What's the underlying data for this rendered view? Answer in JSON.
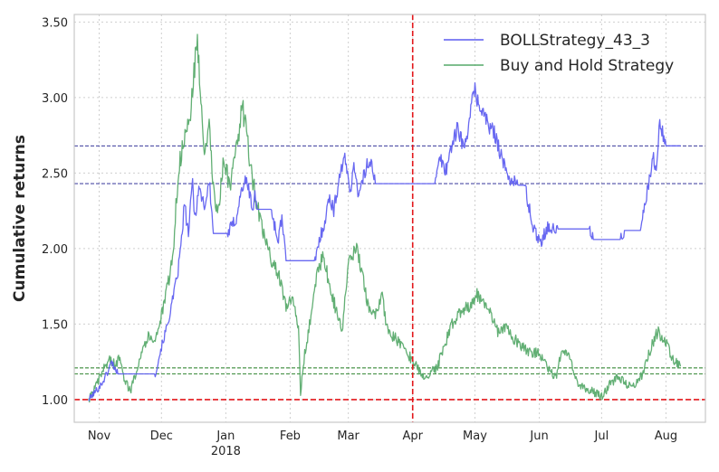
{
  "chart_data": {
    "type": "line",
    "ylabel": "Cumulative returns",
    "xlabel": "",
    "ylim": [
      0.85,
      3.55
    ],
    "xlim": [
      "2017-10-20",
      "2018-08-20"
    ],
    "grid": true,
    "legend_position": "top-right",
    "y_ticks": [
      {
        "value": 1.0,
        "label": "1.00"
      },
      {
        "value": 1.5,
        "label": "1.50"
      },
      {
        "value": 2.0,
        "label": "2.00"
      },
      {
        "value": 2.5,
        "label": "2.50"
      },
      {
        "value": 3.0,
        "label": "3.00"
      },
      {
        "value": 3.5,
        "label": "3.50"
      }
    ],
    "x_ticks": [
      {
        "date": "2017-11-01",
        "label": "Nov",
        "sublabel": ""
      },
      {
        "date": "2017-12-01",
        "label": "Dec",
        "sublabel": ""
      },
      {
        "date": "2018-01-01",
        "label": "Jan",
        "sublabel": "2018"
      },
      {
        "date": "2018-02-01",
        "label": "Feb",
        "sublabel": ""
      },
      {
        "date": "2018-03-01",
        "label": "Mar",
        "sublabel": ""
      },
      {
        "date": "2018-04-01",
        "label": "Apr",
        "sublabel": ""
      },
      {
        "date": "2018-05-01",
        "label": "May",
        "sublabel": ""
      },
      {
        "date": "2018-06-01",
        "label": "Jun",
        "sublabel": ""
      },
      {
        "date": "2018-07-01",
        "label": "Jul",
        "sublabel": ""
      },
      {
        "date": "2018-08-01",
        "label": "Aug",
        "sublabel": ""
      }
    ],
    "series": [
      {
        "name": "BOLLStrategy_43_3",
        "color": "#5b5bf0",
        "x": [
          "2017-10-27",
          "2017-10-30",
          "2017-11-02",
          "2017-11-05",
          "2017-11-07",
          "2017-11-10",
          "2017-11-20",
          "2017-11-28",
          "2017-12-01",
          "2017-12-04",
          "2017-12-07",
          "2017-12-09",
          "2017-12-11",
          "2017-12-12",
          "2017-12-14",
          "2017-12-16",
          "2017-12-17",
          "2017-12-19",
          "2017-12-22",
          "2017-12-24",
          "2017-12-26",
          "2017-12-31",
          "2018-01-02",
          "2018-01-04",
          "2018-01-06",
          "2018-01-08",
          "2018-01-10",
          "2018-01-12",
          "2018-01-14",
          "2018-01-15",
          "2018-01-16",
          "2018-01-20",
          "2018-01-23",
          "2018-01-26",
          "2018-01-28",
          "2018-01-30",
          "2018-02-05",
          "2018-02-10",
          "2018-02-13",
          "2018-02-15",
          "2018-02-18",
          "2018-02-20",
          "2018-02-22",
          "2018-02-25",
          "2018-02-27",
          "2018-03-02",
          "2018-03-04",
          "2018-03-06",
          "2018-03-08",
          "2018-03-10",
          "2018-03-12",
          "2018-03-14",
          "2018-04-01",
          "2018-04-12",
          "2018-04-14",
          "2018-04-17",
          "2018-04-20",
          "2018-04-23",
          "2018-04-26",
          "2018-04-28",
          "2018-05-01",
          "2018-05-03",
          "2018-05-05",
          "2018-05-08",
          "2018-05-11",
          "2018-05-14",
          "2018-05-16",
          "2018-05-19",
          "2018-05-22",
          "2018-05-25",
          "2018-05-28",
          "2018-05-30",
          "2018-06-02",
          "2018-06-05",
          "2018-06-08",
          "2018-06-10",
          "2018-06-25",
          "2018-06-27",
          "2018-06-30",
          "2018-07-10",
          "2018-07-12",
          "2018-07-20",
          "2018-07-22",
          "2018-07-24",
          "2018-07-26",
          "2018-07-27",
          "2018-07-29",
          "2018-08-01",
          "2018-08-08"
        ],
        "values": [
          1.0,
          1.05,
          1.1,
          1.18,
          1.25,
          1.17,
          1.17,
          1.17,
          1.35,
          1.5,
          1.7,
          1.85,
          2.1,
          2.3,
          2.1,
          2.45,
          2.2,
          2.4,
          2.28,
          2.45,
          2.1,
          2.1,
          2.1,
          2.15,
          2.2,
          2.35,
          2.45,
          2.4,
          2.25,
          2.35,
          2.26,
          2.26,
          2.26,
          2.05,
          2.2,
          1.92,
          1.92,
          1.92,
          1.92,
          2.05,
          2.2,
          2.35,
          2.25,
          2.5,
          2.6,
          2.4,
          2.55,
          2.35,
          2.45,
          2.55,
          2.6,
          2.43,
          2.43,
          2.43,
          2.6,
          2.52,
          2.7,
          2.8,
          2.65,
          2.85,
          3.05,
          2.95,
          2.9,
          2.8,
          2.75,
          2.6,
          2.5,
          2.45,
          2.42,
          2.42,
          2.2,
          2.1,
          2.05,
          2.15,
          2.12,
          2.13,
          2.13,
          2.06,
          2.06,
          2.06,
          2.12,
          2.12,
          2.3,
          2.45,
          2.6,
          2.5,
          2.82,
          2.68,
          2.68
        ]
      },
      {
        "name": "Buy and Hold Strategy",
        "color": "#55a868",
        "x": [
          "2017-10-27",
          "2017-10-31",
          "2017-11-03",
          "2017-11-06",
          "2017-11-09",
          "2017-11-11",
          "2017-11-13",
          "2017-11-16",
          "2017-11-19",
          "2017-11-22",
          "2017-11-25",
          "2017-11-28",
          "2017-12-01",
          "2017-12-04",
          "2017-12-07",
          "2017-12-08",
          "2017-12-10",
          "2017-12-12",
          "2017-12-15",
          "2017-12-17",
          "2017-12-18",
          "2017-12-20",
          "2017-12-22",
          "2017-12-24",
          "2017-12-26",
          "2017-12-28",
          "2017-12-31",
          "2018-01-03",
          "2018-01-05",
          "2018-01-07",
          "2018-01-09",
          "2018-01-12",
          "2018-01-14",
          "2018-01-16",
          "2018-01-18",
          "2018-01-21",
          "2018-01-24",
          "2018-01-27",
          "2018-01-30",
          "2018-02-02",
          "2018-02-05",
          "2018-02-06",
          "2018-02-08",
          "2018-02-11",
          "2018-02-14",
          "2018-02-17",
          "2018-02-20",
          "2018-02-23",
          "2018-02-26",
          "2018-03-01",
          "2018-03-05",
          "2018-03-08",
          "2018-03-11",
          "2018-03-14",
          "2018-03-17",
          "2018-03-20",
          "2018-03-24",
          "2018-03-28",
          "2018-04-01",
          "2018-04-04",
          "2018-04-07",
          "2018-04-10",
          "2018-04-13",
          "2018-04-16",
          "2018-04-20",
          "2018-04-24",
          "2018-04-28",
          "2018-05-02",
          "2018-05-05",
          "2018-05-09",
          "2018-05-12",
          "2018-05-16",
          "2018-05-20",
          "2018-05-24",
          "2018-05-28",
          "2018-06-01",
          "2018-06-05",
          "2018-06-09",
          "2018-06-12",
          "2018-06-15",
          "2018-06-19",
          "2018-06-23",
          "2018-06-27",
          "2018-07-01",
          "2018-07-05",
          "2018-07-09",
          "2018-07-13",
          "2018-07-17",
          "2018-07-21",
          "2018-07-25",
          "2018-07-28",
          "2018-08-01",
          "2018-08-05",
          "2018-08-08"
        ],
        "values": [
          1.0,
          1.1,
          1.2,
          1.27,
          1.22,
          1.3,
          1.15,
          1.05,
          1.2,
          1.35,
          1.42,
          1.4,
          1.55,
          1.75,
          2.0,
          2.3,
          2.6,
          2.7,
          2.9,
          3.2,
          3.4,
          3.0,
          2.6,
          2.8,
          2.4,
          2.2,
          2.6,
          2.4,
          2.55,
          2.75,
          2.95,
          2.65,
          2.45,
          2.3,
          2.15,
          2.0,
          1.9,
          1.8,
          1.6,
          1.7,
          1.45,
          1.05,
          1.3,
          1.55,
          1.85,
          1.95,
          1.75,
          1.6,
          1.45,
          1.9,
          2.0,
          1.8,
          1.6,
          1.55,
          1.7,
          1.45,
          1.4,
          1.35,
          1.25,
          1.2,
          1.15,
          1.18,
          1.22,
          1.35,
          1.5,
          1.58,
          1.62,
          1.7,
          1.65,
          1.55,
          1.45,
          1.48,
          1.4,
          1.35,
          1.3,
          1.32,
          1.2,
          1.15,
          1.35,
          1.3,
          1.12,
          1.08,
          1.05,
          1.02,
          1.1,
          1.15,
          1.1,
          1.08,
          1.18,
          1.35,
          1.45,
          1.38,
          1.25,
          1.22
        ]
      }
    ],
    "reference_lines": {
      "horizontal_dashed_red": 1.0,
      "vertical_dashed_red": "2018-04-01",
      "upper_band_navy": [
        2.68,
        2.43
      ],
      "lower_band_green": [
        1.21,
        1.17
      ]
    }
  }
}
